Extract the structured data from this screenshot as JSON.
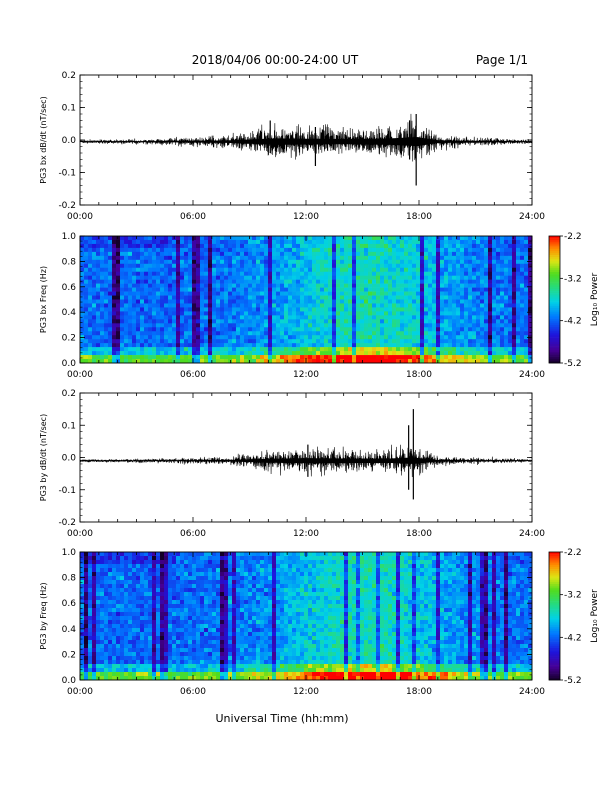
{
  "header": {
    "title": "2018/04/06  00:00-24:00 UT",
    "page": "Page 1/1"
  },
  "xlabel": "Universal Time (hh:mm)",
  "x_ticks": [
    "00:00",
    "06:00",
    "12:00",
    "18:00",
    "24:00"
  ],
  "colorbar": {
    "label": "Log₁₀ Power",
    "ticks": [
      "-2.2",
      "-3.2",
      "-4.2",
      "-5.2"
    ],
    "range": [
      -5.2,
      -2.2
    ]
  },
  "chart_data": [
    {
      "type": "line",
      "ylabel": "PG3 bx dB/dt (nT/sec)",
      "y_ticks": [
        "0.2",
        "0.1",
        "0.0",
        "-0.1",
        "-0.2"
      ],
      "xlim_hours": [
        0,
        24
      ],
      "ylim": [
        -0.2,
        0.2
      ],
      "baseline": -0.005,
      "color": "#000000",
      "activity": [
        {
          "hour": 0,
          "amplitude": 0.005
        },
        {
          "hour": 4,
          "amplitude": 0.008
        },
        {
          "hour": 8,
          "amplitude": 0.02
        },
        {
          "hour": 9.5,
          "amplitude": 0.04
        },
        {
          "hour": 10.5,
          "amplitude": 0.05
        },
        {
          "hour": 12,
          "amplitude": 0.045
        },
        {
          "hour": 14,
          "amplitude": 0.04
        },
        {
          "hour": 16.5,
          "amplitude": 0.05
        },
        {
          "hour": 17.9,
          "amplitude": 0.07
        },
        {
          "hour": 19,
          "amplitude": 0.02
        },
        {
          "hour": 22,
          "amplitude": 0.01
        },
        {
          "hour": 24,
          "amplitude": 0.006
        }
      ],
      "spikes": [
        {
          "hour": 10.1,
          "min": -0.04,
          "max": 0.06
        },
        {
          "hour": 12.5,
          "min": -0.08,
          "max": 0.04
        },
        {
          "hour": 17.5,
          "min": -0.06,
          "max": 0.06
        },
        {
          "hour": 17.85,
          "min": -0.14,
          "max": 0.08
        }
      ]
    },
    {
      "type": "heatmap",
      "ylabel": "PG3 bx Freq (Hz)",
      "y_ticks": [
        "1.0",
        "0.8",
        "0.6",
        "0.4",
        "0.2",
        "0.0"
      ],
      "xlim_hours": [
        0,
        24
      ],
      "ylim": [
        0.0,
        1.0
      ],
      "zrange": [
        -5.2,
        -2.2
      ]
    },
    {
      "type": "line",
      "ylabel": "PG3 by dB/dt (nT/sec)",
      "y_ticks": [
        "0.2",
        "0.1",
        "0.0",
        "-0.1",
        "-0.2"
      ],
      "xlim_hours": [
        0,
        24
      ],
      "ylim": [
        -0.2,
        0.2
      ],
      "baseline": -0.01,
      "color": "#000000",
      "activity": [
        {
          "hour": 0,
          "amplitude": 0.004
        },
        {
          "hour": 4,
          "amplitude": 0.006
        },
        {
          "hour": 8,
          "amplitude": 0.012
        },
        {
          "hour": 10,
          "amplitude": 0.03
        },
        {
          "hour": 12,
          "amplitude": 0.04
        },
        {
          "hour": 14,
          "amplitude": 0.035
        },
        {
          "hour": 16.5,
          "amplitude": 0.035
        },
        {
          "hour": 17.7,
          "amplitude": 0.05
        },
        {
          "hour": 19,
          "amplitude": 0.012
        },
        {
          "hour": 22,
          "amplitude": 0.008
        },
        {
          "hour": 24,
          "amplitude": 0.005
        }
      ],
      "spikes": [
        {
          "hour": 12.1,
          "min": -0.06,
          "max": 0.04
        },
        {
          "hour": 17.45,
          "min": -0.1,
          "max": 0.1
        },
        {
          "hour": 17.7,
          "min": -0.13,
          "max": 0.15
        }
      ]
    },
    {
      "type": "heatmap",
      "ylabel": "PG3 by Freq (Hz)",
      "y_ticks": [
        "1.0",
        "0.8",
        "0.6",
        "0.4",
        "0.2",
        "0.0"
      ],
      "xlim_hours": [
        0,
        24
      ],
      "ylim": [
        0.0,
        1.0
      ],
      "zrange": [
        -5.2,
        -2.2
      ]
    }
  ]
}
